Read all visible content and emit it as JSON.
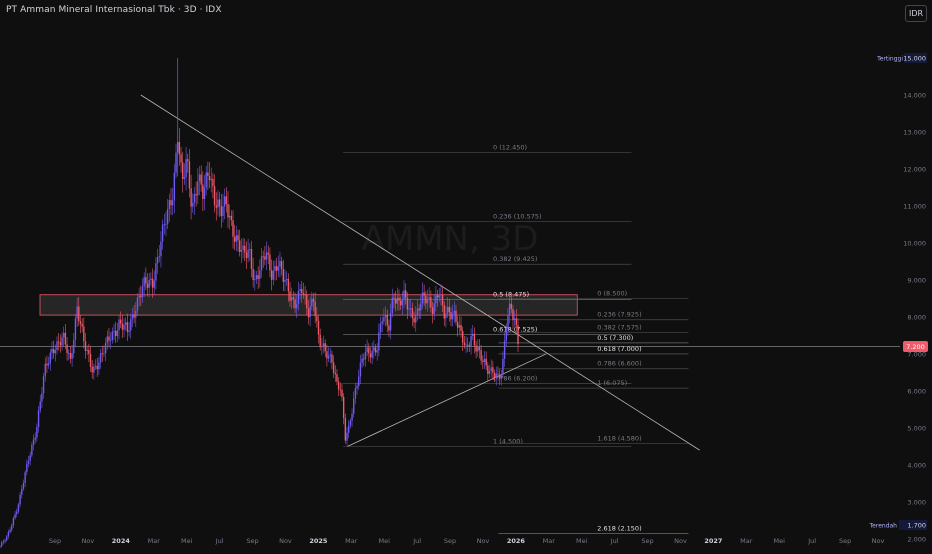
{
  "header": {
    "title": "PT Amman Mineral Internasional Tbk · 3D · IDX",
    "currency": "IDR"
  },
  "watermark": "AMMN, 3D",
  "colors": {
    "background": "#0f0f0f",
    "up": "#6f5cf0",
    "down": "#f05a6a",
    "zone_fill": "#3a3a3a",
    "zone_border": "#f05a6a",
    "price_badge": "#f05a6a",
    "trendline": "#b8b8b8",
    "fib_line": "#4a4a4a",
    "text": "#d1d4dc",
    "muted": "#787b86"
  },
  "chart_data": {
    "type": "candlestick",
    "x_axis_labels": [
      "Sep",
      "Nov",
      "2024",
      "Mar",
      "Mei",
      "Jul",
      "Sep",
      "Nov",
      "2025",
      "Mar",
      "Mei",
      "Jul",
      "Sep",
      "Nov",
      "2026",
      "Mar",
      "Mei",
      "Jul",
      "Sep",
      "Nov",
      "2027",
      "Mar",
      "Mei",
      "Jul",
      "Sep",
      "Nov"
    ],
    "y_axis_labels": [
      "15.000",
      "14.000",
      "13.000",
      "12.000",
      "11.000",
      "10.000",
      "9.000",
      "8.000",
      "7.000",
      "6.000",
      "5.000",
      "4.000",
      "3.000",
      "2.000"
    ],
    "y_values": [
      15000,
      14000,
      13000,
      12000,
      11000,
      10000,
      9000,
      8000,
      7000,
      6000,
      5000,
      4000,
      3000,
      2000
    ],
    "ylim": [
      1700,
      15000
    ],
    "date_range": [
      "2023-07-07",
      "2027-11-30"
    ],
    "last_price": 7200,
    "last_price_label": "7.200",
    "high_label": "Tertinggi",
    "high_value": "15.000",
    "low_label": "Terendah",
    "low_value": "1.700",
    "price_path": [
      [
        "2023-07-07",
        1800
      ],
      [
        "2023-07-20",
        2050
      ],
      [
        "2023-08-10",
        3000
      ],
      [
        "2023-08-28",
        4200
      ],
      [
        "2023-09-10",
        5000
      ],
      [
        "2023-09-25",
        6500
      ],
      [
        "2023-10-10",
        7200
      ],
      [
        "2023-10-28",
        7400
      ],
      [
        "2023-11-10",
        6800
      ],
      [
        "2023-11-22",
        8300
      ],
      [
        "2023-12-05",
        7200
      ],
      [
        "2023-12-20",
        6600
      ],
      [
        "2024-01-05",
        6900
      ],
      [
        "2024-01-20",
        7500
      ],
      [
        "2024-02-05",
        7800
      ],
      [
        "2024-02-20",
        7600
      ],
      [
        "2024-03-05",
        8300
      ],
      [
        "2024-03-20",
        8800
      ],
      [
        "2024-04-05",
        9000
      ],
      [
        "2024-04-20",
        10000
      ],
      [
        "2024-05-05",
        11000
      ],
      [
        "2024-05-12",
        11500
      ],
      [
        "2024-05-20",
        13000
      ],
      [
        "2024-05-28",
        11500
      ],
      [
        "2024-06-05",
        12200
      ],
      [
        "2024-06-15",
        11000
      ],
      [
        "2024-06-25",
        11800
      ],
      [
        "2024-07-05",
        11200
      ],
      [
        "2024-07-15",
        12000
      ],
      [
        "2024-07-25",
        11300
      ],
      [
        "2024-08-05",
        10800
      ],
      [
        "2024-08-15",
        11000
      ],
      [
        "2024-08-25",
        10500
      ],
      [
        "2024-09-05",
        10000
      ],
      [
        "2024-09-15",
        9600
      ],
      [
        "2024-09-25",
        9800
      ],
      [
        "2024-10-05",
        9000
      ],
      [
        "2024-10-15",
        9300
      ],
      [
        "2024-10-25",
        9700
      ],
      [
        "2024-11-05",
        9200
      ],
      [
        "2024-11-15",
        9500
      ],
      [
        "2024-11-25",
        9000
      ],
      [
        "2024-12-05",
        8700
      ],
      [
        "2024-12-15",
        8400
      ],
      [
        "2024-12-28",
        8700
      ],
      [
        "2025-01-08",
        8100
      ],
      [
        "2025-01-18",
        8600
      ],
      [
        "2025-01-28",
        7300
      ],
      [
        "2025-02-08",
        7000
      ],
      [
        "2025-02-20",
        6900
      ],
      [
        "2025-03-01",
        6200
      ],
      [
        "2025-03-08",
        6000
      ],
      [
        "2025-03-16",
        4700
      ],
      [
        "2025-03-22",
        5000
      ],
      [
        "2025-04-01",
        5900
      ],
      [
        "2025-04-10",
        6500
      ],
      [
        "2025-04-20",
        7000
      ],
      [
        "2025-05-01",
        7100
      ],
      [
        "2025-05-12",
        7200
      ],
      [
        "2025-05-22",
        8000
      ],
      [
        "2025-06-01",
        7700
      ],
      [
        "2025-06-10",
        8700
      ],
      [
        "2025-06-20",
        8300
      ],
      [
        "2025-06-30",
        8500
      ],
      [
        "2025-07-10",
        8200
      ],
      [
        "2025-07-20",
        8000
      ],
      [
        "2025-07-30",
        8400
      ],
      [
        "2025-08-10",
        8500
      ],
      [
        "2025-08-20",
        8300
      ],
      [
        "2025-08-30",
        8700
      ],
      [
        "2025-09-08",
        8000
      ],
      [
        "2025-09-18",
        8200
      ],
      [
        "2025-09-28",
        8100
      ],
      [
        "2025-10-08",
        7500
      ],
      [
        "2025-10-18",
        7100
      ],
      [
        "2025-10-28",
        7600
      ],
      [
        "2025-11-05",
        7200
      ],
      [
        "2025-11-15",
        6800
      ],
      [
        "2025-11-25",
        6600
      ],
      [
        "2025-12-05",
        6600
      ],
      [
        "2025-12-15",
        6300
      ],
      [
        "2025-12-22",
        6500
      ],
      [
        "2025-12-30",
        8000
      ],
      [
        "2026-01-06",
        8400
      ],
      [
        "2026-01-14",
        7900
      ],
      [
        "2026-01-20",
        7200
      ]
    ],
    "resistance_zone": {
      "top": 8600,
      "bottom": 8050,
      "start": "2023-07-07",
      "end": "2026-05-05"
    },
    "trendlines": [
      {
        "name": "descending-trendline",
        "start": [
          "2024-03-15",
          14000
        ],
        "end": [
          "2026-12-10",
          4400
        ]
      },
      {
        "name": "ascending-trendline",
        "start": [
          "2025-03-20",
          4500
        ],
        "end": [
          "2026-03-10",
          7000
        ]
      }
    ],
    "last_price_line_color": "#9598a1",
    "fib_levels_major": [
      {
        "label": "0 (12.450)",
        "price": 12450,
        "start": "2025-03-12",
        "end": "2026-08-10"
      },
      {
        "label": "0.236 (10.575)",
        "price": 10575,
        "start": "2025-03-12",
        "end": "2026-08-10"
      },
      {
        "label": "0.382 (9.425)",
        "price": 9425,
        "start": "2025-03-12",
        "end": "2026-08-10"
      },
      {
        "label": "0.5 (8.475)",
        "price": 8475,
        "start": "2025-03-12",
        "end": "2026-08-10",
        "bright": true
      },
      {
        "label": "0.618 (7.525)",
        "price": 7525,
        "start": "2025-03-12",
        "end": "2026-08-10",
        "bright": true
      },
      {
        "label": "0.786 (6.200)",
        "price": 6200,
        "start": "2025-03-12",
        "end": "2026-08-10"
      },
      {
        "label": "1 (4.500)",
        "price": 4500,
        "start": "2025-03-12",
        "end": "2026-08-10"
      }
    ],
    "fib_levels_minor": [
      {
        "label": "0 (8.500)",
        "price": 8500,
        "start": "2025-12-15",
        "end": "2026-11-20"
      },
      {
        "label": "0.236 (7.925)",
        "price": 7925,
        "start": "2025-12-15",
        "end": "2026-11-20"
      },
      {
        "label": "0.382 (7.575)",
        "price": 7575,
        "start": "2025-12-15",
        "end": "2026-11-20"
      },
      {
        "label": "0.5 (7.300)",
        "price": 7300,
        "start": "2025-12-15",
        "end": "2026-11-20",
        "bright": true
      },
      {
        "label": "0.618 (7.000)",
        "price": 7000,
        "start": "2025-12-15",
        "end": "2026-11-20",
        "bright": true
      },
      {
        "label": "0.786 (6.600)",
        "price": 6600,
        "start": "2025-12-15",
        "end": "2026-11-20"
      },
      {
        "label": "1 (6.075)",
        "price": 6075,
        "start": "2025-12-15",
        "end": "2026-11-20"
      },
      {
        "label": "1.618 (4.580)",
        "price": 4580,
        "start": "2025-12-15",
        "end": "2026-11-20"
      },
      {
        "label": "2.618 (2.150)",
        "price": 2150,
        "start": "2025-12-15",
        "end": "2026-11-20",
        "bright": true
      }
    ]
  }
}
